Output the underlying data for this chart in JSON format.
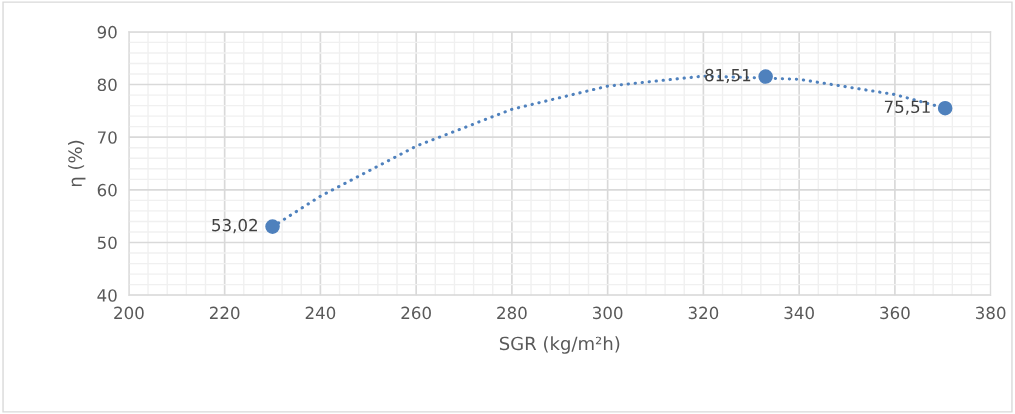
{
  "chart_data": {
    "type": "scatter",
    "xlabel": "SGR (kg/m²h)",
    "ylabel": "η (%)",
    "xlim": [
      200,
      380
    ],
    "xticks": [
      200,
      220,
      240,
      260,
      280,
      300,
      320,
      340,
      360,
      380
    ],
    "ylim": [
      40,
      90
    ],
    "yticks": [
      40,
      50,
      60,
      70,
      80,
      90
    ],
    "grid": true,
    "marker": "circle",
    "series": [
      {
        "color": "#4f81bd",
        "x": [
          230,
          333,
          370.5
        ],
        "values": [
          53.02,
          81.51,
          75.51
        ],
        "value_labels": [
          "53,02",
          "81,51",
          "75,51"
        ]
      },
      {
        "type": "line",
        "color": "#4f81bd",
        "line_style": "dotted",
        "marker": "none",
        "x": [
          230,
          240,
          260,
          280,
          300,
          320,
          340,
          360,
          370.5
        ],
        "values": [
          53.0,
          58.8,
          68.3,
          75.3,
          79.7,
          81.6,
          81.0,
          78.1,
          75.5
        ]
      }
    ]
  }
}
